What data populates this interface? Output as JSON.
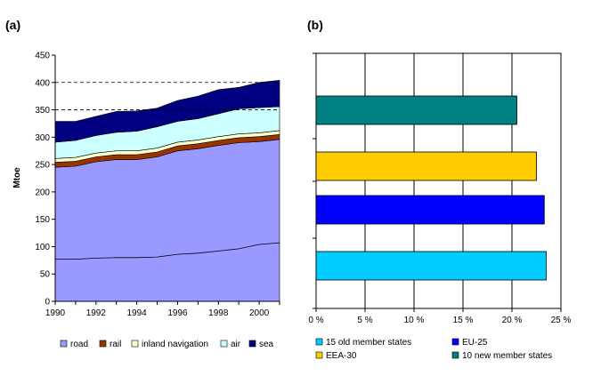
{
  "chart_data": [
    {
      "panel_label": "(a)",
      "type": "area",
      "stacked": true,
      "ylabel": "Mtoe",
      "xlabel": "",
      "x": [
        1990,
        1991,
        1992,
        1993,
        1994,
        1995,
        1996,
        1997,
        1998,
        1999,
        2000,
        2001
      ],
      "xlim": [
        1990,
        2001
      ],
      "x_ticks": [
        1990,
        1992,
        1994,
        1996,
        1998,
        2000
      ],
      "ylim": [
        0,
        450
      ],
      "y_ticks": [
        0,
        50,
        100,
        150,
        200,
        250,
        300,
        350,
        400,
        450
      ],
      "dashed_gridlines_at": [
        350,
        400
      ],
      "legend_position": "bottom",
      "series": [
        {
          "name": "road",
          "color": "#9999ff",
          "values": [
            245,
            247,
            255,
            259,
            259,
            264,
            275,
            279,
            285,
            290,
            292,
            296
          ]
        },
        {
          "name": "rail",
          "color": "#993300",
          "values": [
            9,
            9,
            9,
            9,
            9,
            9,
            9,
            9,
            9,
            9,
            9,
            9
          ]
        },
        {
          "name": "inland navigation",
          "color": "#ffffcc",
          "values": [
            7,
            7,
            7,
            7,
            7,
            7,
            7,
            7,
            7,
            7,
            7,
            7
          ]
        },
        {
          "name": "air",
          "color": "#ccffff",
          "values": [
            30,
            31,
            32,
            34,
            36,
            39,
            38,
            39,
            42,
            46,
            46,
            44
          ]
        },
        {
          "name": "sea",
          "color": "#000080",
          "values": [
            38,
            35,
            35,
            38,
            37,
            34,
            38,
            41,
            44,
            39,
            46,
            48
          ]
        }
      ],
      "reference_line": {
        "values": [
          77,
          77,
          79,
          80,
          80,
          81,
          86,
          88,
          92,
          96,
          104,
          107
        ]
      }
    },
    {
      "panel_label": "(b)",
      "type": "bar",
      "orientation": "horizontal",
      "xlim": [
        0,
        25
      ],
      "x_ticks": [
        "0 %",
        "5 %",
        "10 %",
        "15 %",
        "20 %",
        "25 %"
      ],
      "grid": "vertical",
      "legend_position": "bottom",
      "series": [
        {
          "name": "15 old member states",
          "color": "#00ccff",
          "value": 23.5
        },
        {
          "name": "EU-25",
          "color": "#0000ff",
          "value": 23.3
        },
        {
          "name": "EEA-30",
          "color": "#ffcc00",
          "value": 22.5
        },
        {
          "name": "10 new member states",
          "color": "#008080",
          "value": 20.5
        }
      ]
    }
  ]
}
